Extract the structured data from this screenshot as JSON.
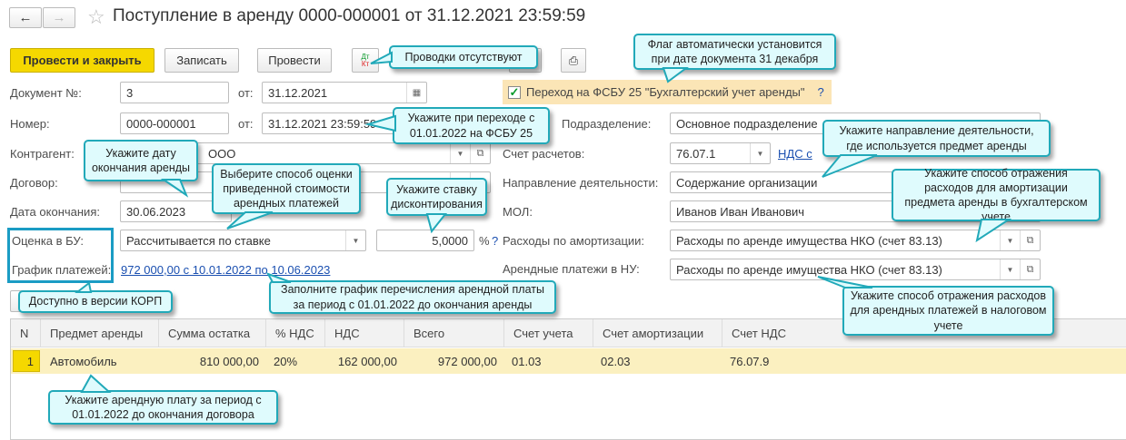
{
  "header": {
    "title": "Поступление в аренду 0000-000001 от 31.12.2021 23:59:59",
    "back_icon": "arrow-left",
    "forward_icon": "arrow-right",
    "star_icon": "star"
  },
  "toolbar": {
    "post_close": "Провести и закрыть",
    "save": "Записать",
    "post": "Провести",
    "dtkt_dt": "Дт",
    "dtkt_kt": "Кт"
  },
  "form": {
    "doc_no_label": "Документ №:",
    "doc_no": "3",
    "from_label": "от:",
    "doc_date": "31.12.2021",
    "number_label": "Номер:",
    "number": "0000-000001",
    "number_date": "31.12.2021 23:59:59",
    "contractor_label": "Контрагент:",
    "contractor": "ООО",
    "contract_label": "Договор:",
    "end_date_label": "Дата окончания:",
    "end_date": "30.06.2023",
    "valuation_label": "Оценка в БУ:",
    "valuation": "Рассчитывается по ставке",
    "rate": "5,0000",
    "percent": "%",
    "help": "?",
    "schedule_label": "График платежей:",
    "schedule_link": "972 000,00 с 10.01.2022 по 10.06.2023",
    "fsbu_checkbox": "Переход на ФСБУ 25 \"Бухгалтерский учет аренды\"",
    "fsbu_checked": true,
    "division_label": "Подразделение:",
    "division": "Основное подразделение",
    "account_label": "Счет расчетов:",
    "account": "76.07.1",
    "vat_link": "НДС с",
    "activity_label": "Направление деятельности:",
    "activity": "Содержание организации",
    "mol_label": "МОЛ:",
    "mol": "Иванов Иван Иванович",
    "amort_label": "Расходы по амортизации:",
    "amort": "Расходы по аренде имущества НКО (счет 83.13)",
    "tax_label": "Арендные платежи в НУ:",
    "tax": "Расходы по аренде имущества НКО (счет 83.13)"
  },
  "table": {
    "columns": [
      "N",
      "Предмет аренды",
      "Сумма остатка",
      "% НДС",
      "НДС",
      "Всего",
      "Счет учета",
      "Счет амортизации",
      "Счет НДС"
    ],
    "rows": [
      [
        "1",
        "Автомобиль",
        "810 000,00",
        "20%",
        "162 000,00",
        "972 000,00",
        "01.03",
        "02.03",
        "76.07.9"
      ]
    ]
  },
  "callouts": {
    "postings": "Проводки отсутствуют",
    "flag": "Флаг автоматически установится при дате документа 31 декабря",
    "transition": "Укажите при переходе с 01.01.2022 на ФСБУ 25",
    "end_date": "Укажите дату окончания аренды",
    "valuation": "Выберите способ оценки приведенной стоимости арендных платежей",
    "rate": "Укажите ставку дисконтирования",
    "activity": "Укажите направление деятельности, где используется предмет аренды",
    "amort": "Укажите способ отражения расходов для амортизации предмета аренды в бухгалтерском учете",
    "schedule": "Заполните график перечисления арендной платы за период с 01.01.2022 до окончания аренды",
    "corp": "Доступно в версии КОРП",
    "tax": "Укажите способ отражения расходов для арендных платежей в налоговом учете",
    "rent": "Укажите арендную плату за период с 01.01.2022 до окончания договора"
  },
  "colors": {
    "primary_button": "#f5d800",
    "callout_bg": "#dffbfd",
    "callout_border": "#21a9b9",
    "selected_row": "#fbf0c0",
    "highlight_box": "#1a9cc4"
  }
}
